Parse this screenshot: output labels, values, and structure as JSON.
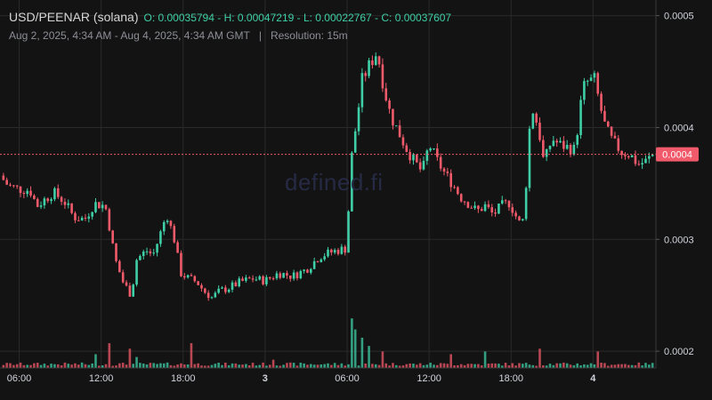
{
  "header": {
    "pair": "USD/PEENAR (solana)",
    "ohlc": "O: 0.00035794 - H: 0.00047219 - L: 0.00022767 - C: 0.00037607",
    "range": "Aug 2, 2025, 4:34 AM - Aug 4, 2025, 4:34 AM GMT",
    "separator": "|",
    "resolution": "Resolution: 15m"
  },
  "watermark": "defined.fi",
  "colors": {
    "up": "#3fcfa6",
    "down": "#f05a6a",
    "background": "#131313",
    "grid": "#2a2a2a",
    "text": "#d1d4dc"
  },
  "chart_data": {
    "type": "candlestick",
    "title": "USD/PEENAR (solana)",
    "y_axis": {
      "ticks": [
        "0.0005",
        "0.0004",
        "0.0003",
        "0.0002"
      ],
      "tick_values": [
        0.0005,
        0.0004,
        0.0003,
        0.0002
      ],
      "range": [
        0.000185,
        0.000514
      ],
      "position": "right"
    },
    "x_axis": {
      "range_hours": [
        4.6,
        52.6
      ],
      "ticks": [
        {
          "label": "06:00",
          "hour": 6,
          "bold": false
        },
        {
          "label": "12:00",
          "hour": 12,
          "bold": false
        },
        {
          "label": "18:00",
          "hour": 18,
          "bold": false
        },
        {
          "label": "3",
          "hour": 24,
          "bold": true
        },
        {
          "label": "06:00",
          "hour": 30,
          "bold": false
        },
        {
          "label": "12:00",
          "hour": 36,
          "bold": false
        },
        {
          "label": "18:00",
          "hour": 42,
          "bold": false
        },
        {
          "label": "4",
          "hour": 48,
          "bold": true
        }
      ]
    },
    "last_price": {
      "label": "0.0004",
      "value": 0.000376
    },
    "grid": true,
    "price_path": [
      [
        4.6,
        0.000357
      ],
      [
        5.2,
        0.000348
      ],
      [
        6.0,
        0.000345
      ],
      [
        6.8,
        0.000344
      ],
      [
        7.3,
        0.00033
      ],
      [
        7.8,
        0.000335
      ],
      [
        8.5,
        0.000342
      ],
      [
        9.3,
        0.000334
      ],
      [
        10.0,
        0.00032
      ],
      [
        10.8,
        0.000318
      ],
      [
        11.5,
        0.000332
      ],
      [
        12.3,
        0.00033
      ],
      [
        12.6,
        0.000312
      ],
      [
        13.0,
        0.000283
      ],
      [
        13.6,
        0.000262
      ],
      [
        14.2,
        0.00025
      ],
      [
        14.6,
        0.000282
      ],
      [
        15.3,
        0.00029
      ],
      [
        15.8,
        0.000286
      ],
      [
        16.2,
        0.0003
      ],
      [
        16.8,
        0.000323
      ],
      [
        17.4,
        0.000298
      ],
      [
        17.8,
        0.00027
      ],
      [
        18.4,
        0.000265
      ],
      [
        19.0,
        0.000262
      ],
      [
        19.5,
        0.000254
      ],
      [
        20.1,
        0.000248
      ],
      [
        20.7,
        0.000254
      ],
      [
        21.4,
        0.000257
      ],
      [
        22.2,
        0.000262
      ],
      [
        23.1,
        0.000265
      ],
      [
        24.0,
        0.000263
      ],
      [
        25.0,
        0.00027
      ],
      [
        26.0,
        0.000267
      ],
      [
        27.0,
        0.000273
      ],
      [
        28.0,
        0.000285
      ],
      [
        29.2,
        0.00029
      ],
      [
        30.0,
        0.000292
      ],
      [
        30.2,
        0.00036
      ],
      [
        30.5,
        0.00039
      ],
      [
        30.8,
        0.000412
      ],
      [
        31.0,
        0.00044
      ],
      [
        31.6,
        0.000455
      ],
      [
        32.2,
        0.000468
      ],
      [
        32.7,
        0.000435
      ],
      [
        33.2,
        0.00041
      ],
      [
        33.8,
        0.000395
      ],
      [
        34.3,
        0.000382
      ],
      [
        34.9,
        0.00037
      ],
      [
        35.5,
        0.00036
      ],
      [
        36.0,
        0.000385
      ],
      [
        36.6,
        0.00037
      ],
      [
        37.2,
        0.000358
      ],
      [
        37.7,
        0.00035
      ],
      [
        38.3,
        0.000338
      ],
      [
        38.9,
        0.000332
      ],
      [
        39.5,
        0.000325
      ],
      [
        40.1,
        0.00033
      ],
      [
        40.7,
        0.000322
      ],
      [
        41.3,
        0.00033
      ],
      [
        41.9,
        0.000333
      ],
      [
        42.3,
        0.000322
      ],
      [
        42.8,
        0.00031
      ],
      [
        43.1,
        0.00035
      ],
      [
        43.3,
        0.000395
      ],
      [
        43.6,
        0.000415
      ],
      [
        44.0,
        0.0004
      ],
      [
        44.4,
        0.000368
      ],
      [
        45.0,
        0.00039
      ],
      [
        45.5,
        0.000385
      ],
      [
        46.2,
        0.000382
      ],
      [
        46.7,
        0.00038
      ],
      [
        47.0,
        0.000415
      ],
      [
        47.4,
        0.00044
      ],
      [
        48.1,
        0.000443
      ],
      [
        48.5,
        0.00042
      ],
      [
        48.9,
        0.0004
      ],
      [
        49.4,
        0.000388
      ],
      [
        50.1,
        0.000378
      ],
      [
        50.7,
        0.000376
      ],
      [
        51.3,
        0.000367
      ],
      [
        51.9,
        0.00037
      ],
      [
        52.4,
        0.000376
      ],
      [
        52.6,
        0.000376
      ]
    ],
    "volume_spikes": [
      [
        11.5,
        0.25
      ],
      [
        12.5,
        0.45
      ],
      [
        14.0,
        0.35
      ],
      [
        14.6,
        0.2
      ],
      [
        18.7,
        0.45
      ],
      [
        24.5,
        0.15
      ],
      [
        30.3,
        0.9
      ],
      [
        30.7,
        0.7
      ],
      [
        31.1,
        0.55
      ],
      [
        31.6,
        0.4
      ],
      [
        32.5,
        0.3
      ],
      [
        37.5,
        0.25
      ],
      [
        40.0,
        0.3
      ],
      [
        44.0,
        0.35
      ],
      [
        48.4,
        0.3
      ]
    ]
  }
}
